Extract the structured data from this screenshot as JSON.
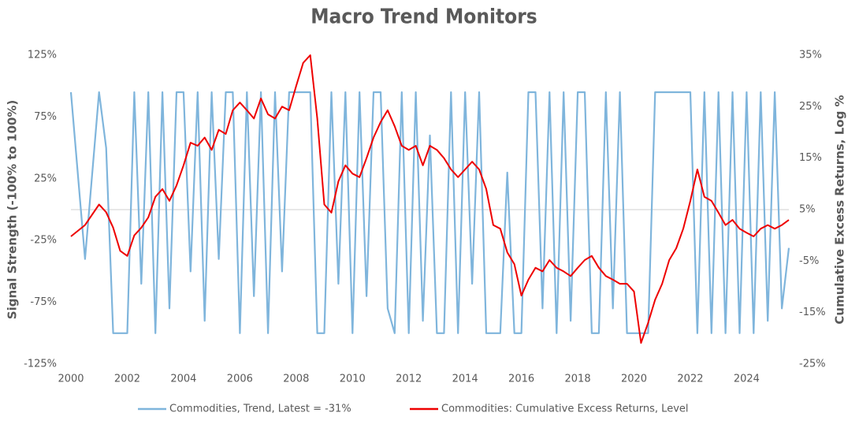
{
  "chart_data": {
    "type": "line",
    "title": "Macro Trend Monitors",
    "ylabel": "Signal Strength (-100% to 100%)",
    "y2label": "Cumulative Excess Returns, Log %",
    "x": [
      2000,
      2000.5,
      2001,
      2001.25,
      2001.5,
      2001.75,
      2002,
      2002.25,
      2002.5,
      2002.75,
      2003,
      2003.25,
      2003.5,
      2003.75,
      2004,
      2004.25,
      2004.5,
      2004.75,
      2005,
      2005.25,
      2005.5,
      2005.75,
      2006,
      2006.25,
      2006.5,
      2006.75,
      2007,
      2007.25,
      2007.5,
      2007.75,
      2008,
      2008.25,
      2008.5,
      2008.75,
      2009,
      2009.25,
      2009.5,
      2009.75,
      2010,
      2010.25,
      2010.5,
      2010.75,
      2011,
      2011.25,
      2011.5,
      2011.75,
      2012,
      2012.25,
      2012.5,
      2012.75,
      2013,
      2013.25,
      2013.5,
      2013.75,
      2014,
      2014.25,
      2014.5,
      2014.75,
      2015,
      2015.25,
      2015.5,
      2015.75,
      2016,
      2016.25,
      2016.5,
      2016.75,
      2017,
      2017.25,
      2017.5,
      2017.75,
      2018,
      2018.25,
      2018.5,
      2018.75,
      2019,
      2019.25,
      2019.5,
      2019.75,
      2020,
      2020.25,
      2020.5,
      2020.75,
      2021,
      2021.25,
      2021.5,
      2021.75,
      2022,
      2022.25,
      2022.5,
      2022.75,
      2023,
      2023.25,
      2023.5,
      2023.75,
      2024,
      2024.25,
      2024.5,
      2024.75,
      2025,
      2025.25,
      2025.5
    ],
    "series": [
      {
        "name": "Commodities, Trend, Latest = -31%",
        "color": "#7fb5dc",
        "axis": "y",
        "values": [
          95,
          -40,
          95,
          50,
          -100,
          -100,
          -100,
          95,
          -60,
          95,
          -100,
          95,
          -80,
          95,
          95,
          -50,
          95,
          -90,
          95,
          -40,
          95,
          95,
          -100,
          95,
          -70,
          95,
          -100,
          95,
          -50,
          95,
          95,
          95,
          95,
          -100,
          -100,
          95,
          -60,
          95,
          -100,
          95,
          -70,
          95,
          95,
          -80,
          -100,
          95,
          -100,
          95,
          -90,
          60,
          -100,
          -100,
          95,
          -100,
          95,
          -60,
          95,
          -100,
          -100,
          -100,
          30,
          -100,
          -100,
          95,
          95,
          -80,
          95,
          -100,
          95,
          -90,
          95,
          95,
          -100,
          -100,
          95,
          -80,
          95,
          -100,
          -100,
          -100,
          -100,
          95,
          95,
          95,
          95,
          95,
          95,
          -100,
          95,
          -100,
          95,
          -100,
          95,
          -100,
          95,
          -100,
          95,
          -90,
          95,
          -80,
          -31
        ]
      },
      {
        "name": "Commodities: Cumulative Excess Returns, Level",
        "color": "#ee0000",
        "axis": "y2",
        "values": [
          -0.2,
          2,
          6,
          4.5,
          1.5,
          -3,
          -4,
          0,
          1.5,
          3.5,
          7.5,
          9,
          6.7,
          9.7,
          13.6,
          18,
          17.4,
          19,
          16.6,
          20.5,
          19.7,
          24.3,
          25.8,
          24.3,
          22.7,
          26.6,
          23.5,
          22.7,
          25,
          24.3,
          29,
          33.5,
          35,
          22.7,
          6,
          4.4,
          10.5,
          13.6,
          12,
          11.3,
          15,
          19,
          22,
          24.3,
          21.2,
          17.4,
          16.6,
          17.4,
          13.6,
          17.4,
          16.6,
          15,
          12.8,
          11.3,
          12.8,
          14.3,
          12.8,
          9,
          2,
          1.3,
          -3.3,
          -5.6,
          -11.7,
          -8.6,
          -6.3,
          -7,
          -4.8,
          -6.3,
          -7,
          -7.9,
          -6.3,
          -4.8,
          -4,
          -6.3,
          -7.9,
          -8.6,
          -9.4,
          -9.4,
          -10.9,
          -20.9,
          -17,
          -12.5,
          -9.4,
          -4.8,
          -2.5,
          1.3,
          6.7,
          12.8,
          7.5,
          6.7,
          4.4,
          2,
          3,
          1.3,
          0.5,
          -0.2,
          1.3,
          2,
          1.3,
          2,
          3
        ]
      }
    ],
    "xlim": [
      2000,
      2025.5
    ],
    "xticks": [
      2000,
      2002,
      2004,
      2006,
      2008,
      2010,
      2012,
      2014,
      2016,
      2018,
      2020,
      2022,
      2024
    ],
    "ylim": [
      -125,
      125
    ],
    "yticks": [
      {
        "value": -125,
        "label": "-125%"
      },
      {
        "value": -75,
        "label": "-75%"
      },
      {
        "value": -25,
        "label": "-25%"
      },
      {
        "value": 25,
        "label": "25%"
      },
      {
        "value": 75,
        "label": "75%"
      },
      {
        "value": 125,
        "label": "125%"
      }
    ],
    "y2lim": [
      -25,
      35
    ],
    "y2ticks": [
      {
        "value": -25,
        "label": "-25%"
      },
      {
        "value": -15,
        "label": "-15%"
      },
      {
        "value": -5,
        "label": "-5%"
      },
      {
        "value": 5,
        "label": "5%"
      },
      {
        "value": 15,
        "label": "15%"
      },
      {
        "value": 25,
        "label": "25%"
      },
      {
        "value": 35,
        "label": "35%"
      }
    ],
    "legend": "bottom"
  }
}
